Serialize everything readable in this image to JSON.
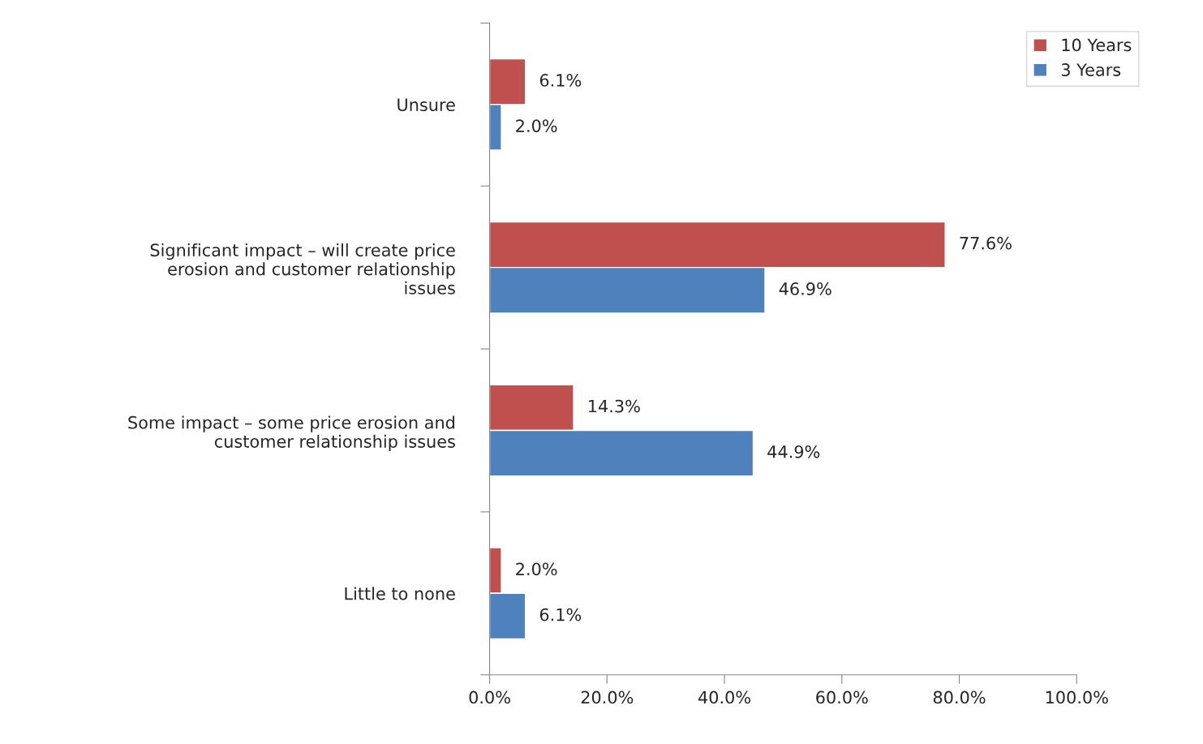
{
  "chart_data": {
    "type": "bar",
    "orientation": "horizontal",
    "categories": [
      "Unsure",
      "Significant impact – will create price\nerosion and customer relationship\nissues",
      "Some impact – some price erosion and\ncustomer relationship issues",
      "Little to none"
    ],
    "series": [
      {
        "name": "10 Years",
        "color": "#c0504d",
        "values": [
          6.1,
          77.6,
          14.3,
          2.0
        ],
        "value_labels": [
          "6.1%",
          "77.6%",
          "14.3%",
          "2.0%"
        ]
      },
      {
        "name": "3 Years",
        "color": "#4f81bd",
        "values": [
          2.0,
          46.9,
          44.9,
          6.1
        ],
        "value_labels": [
          "2.0%",
          "46.9%",
          "44.9%",
          "6.1%"
        ]
      }
    ],
    "xlim": [
      0,
      100
    ],
    "xticks": [
      {
        "value": 0,
        "label": "0.0%"
      },
      {
        "value": 20,
        "label": "20.0%"
      },
      {
        "value": 40,
        "label": "40.0%"
      },
      {
        "value": 60,
        "label": "60.0%"
      },
      {
        "value": 80,
        "label": "80.0%"
      },
      {
        "value": 100,
        "label": "100.0%"
      }
    ],
    "grid": false,
    "legend": "top right"
  }
}
